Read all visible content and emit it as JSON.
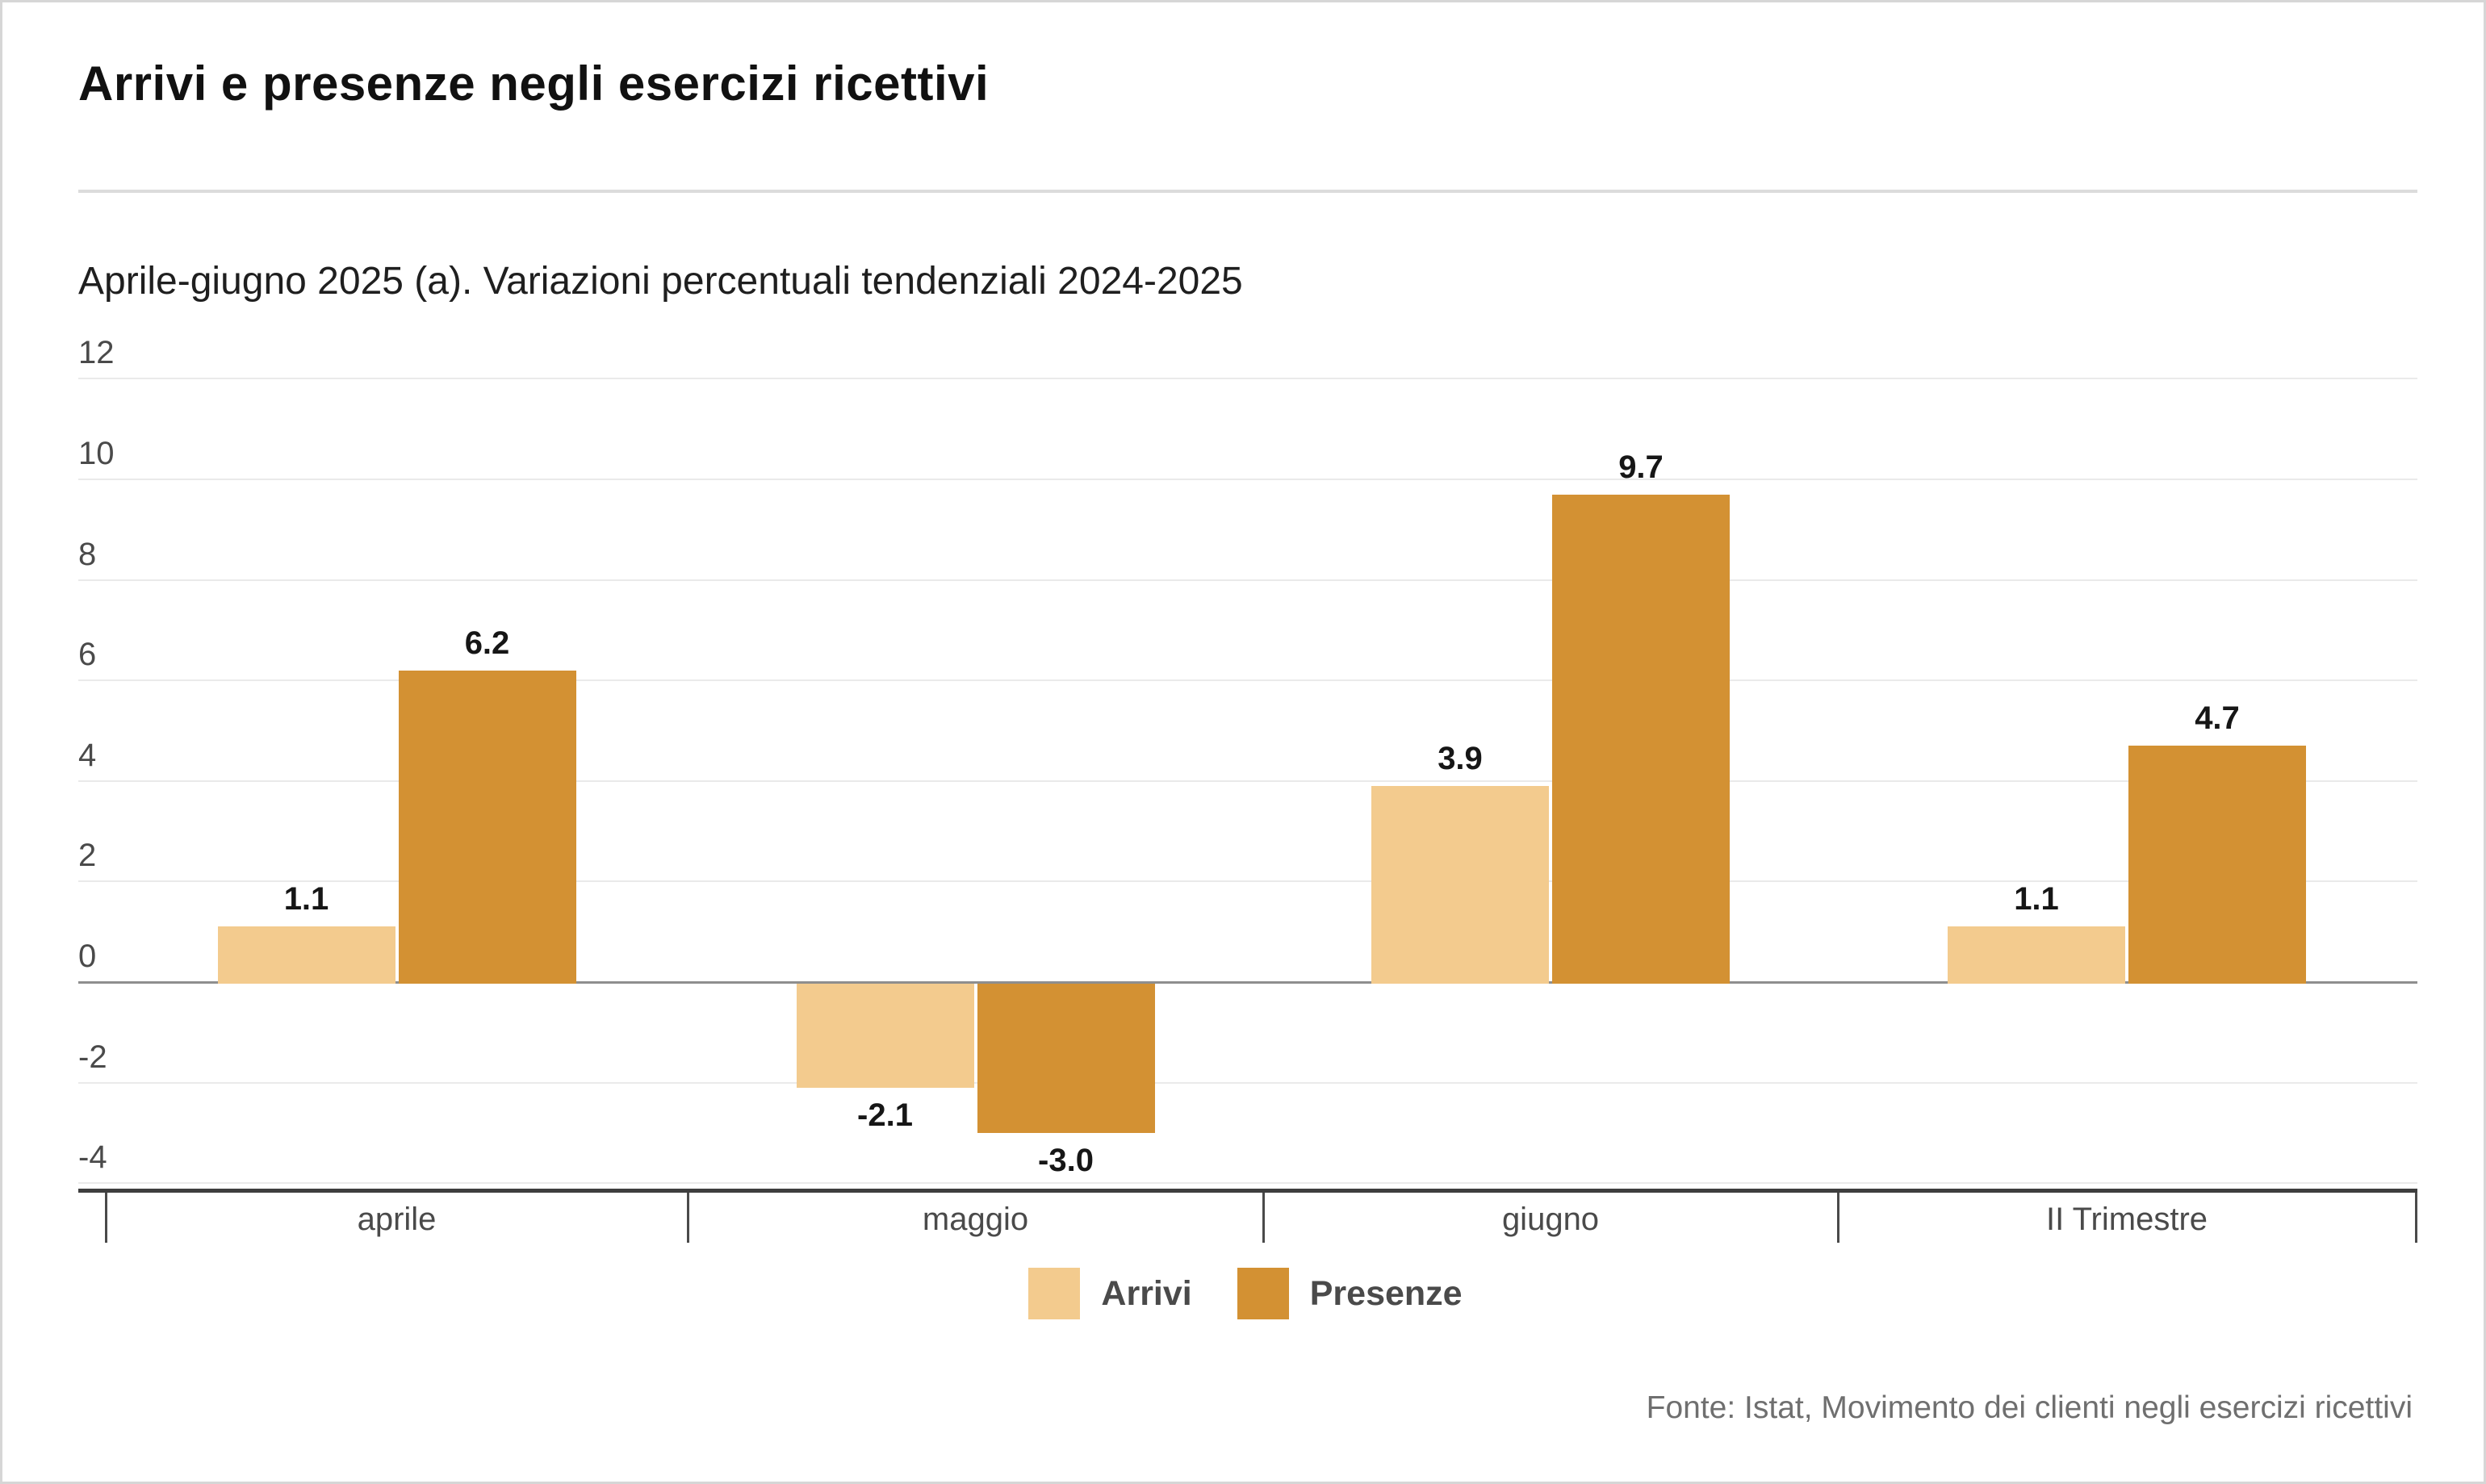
{
  "header": {
    "title": "Arrivi e presenze negli esercizi ricettivi",
    "subtitle": "Aprile-giugno 2025 (a). Variazioni percentuali tendenziali 2024-2025"
  },
  "chart_data": {
    "type": "bar",
    "title": "Arrivi e presenze negli esercizi ricettivi",
    "subtitle": "Aprile-giugno 2025 (a). Variazioni percentuali tendenziali 2024-2025",
    "categories": [
      "aprile",
      "maggio",
      "giugno",
      "II Trimestre"
    ],
    "series": [
      {
        "name": "Arrivi",
        "color": "#F3CB8E",
        "values": [
          1.1,
          -2.1,
          3.9,
          1.1
        ]
      },
      {
        "name": "Presenze",
        "color": "#D39133",
        "values": [
          6.2,
          -3.0,
          9.7,
          4.7
        ]
      }
    ],
    "xlabel": "",
    "ylabel": "",
    "ylim": [
      -4,
      12
    ],
    "y_ticks": [
      12,
      10,
      8,
      6,
      4,
      2,
      0,
      -2,
      -4
    ],
    "grid": true,
    "legend_position": "bottom",
    "value_labels_decimals": 1
  },
  "legend": {
    "items": [
      {
        "label": "Arrivi",
        "color": "#F3CB8E"
      },
      {
        "label": "Presenze",
        "color": "#D39133"
      }
    ]
  },
  "footer": {
    "source": "Fonte: Istat, Movimento dei clienti negli esercizi ricettivi"
  }
}
